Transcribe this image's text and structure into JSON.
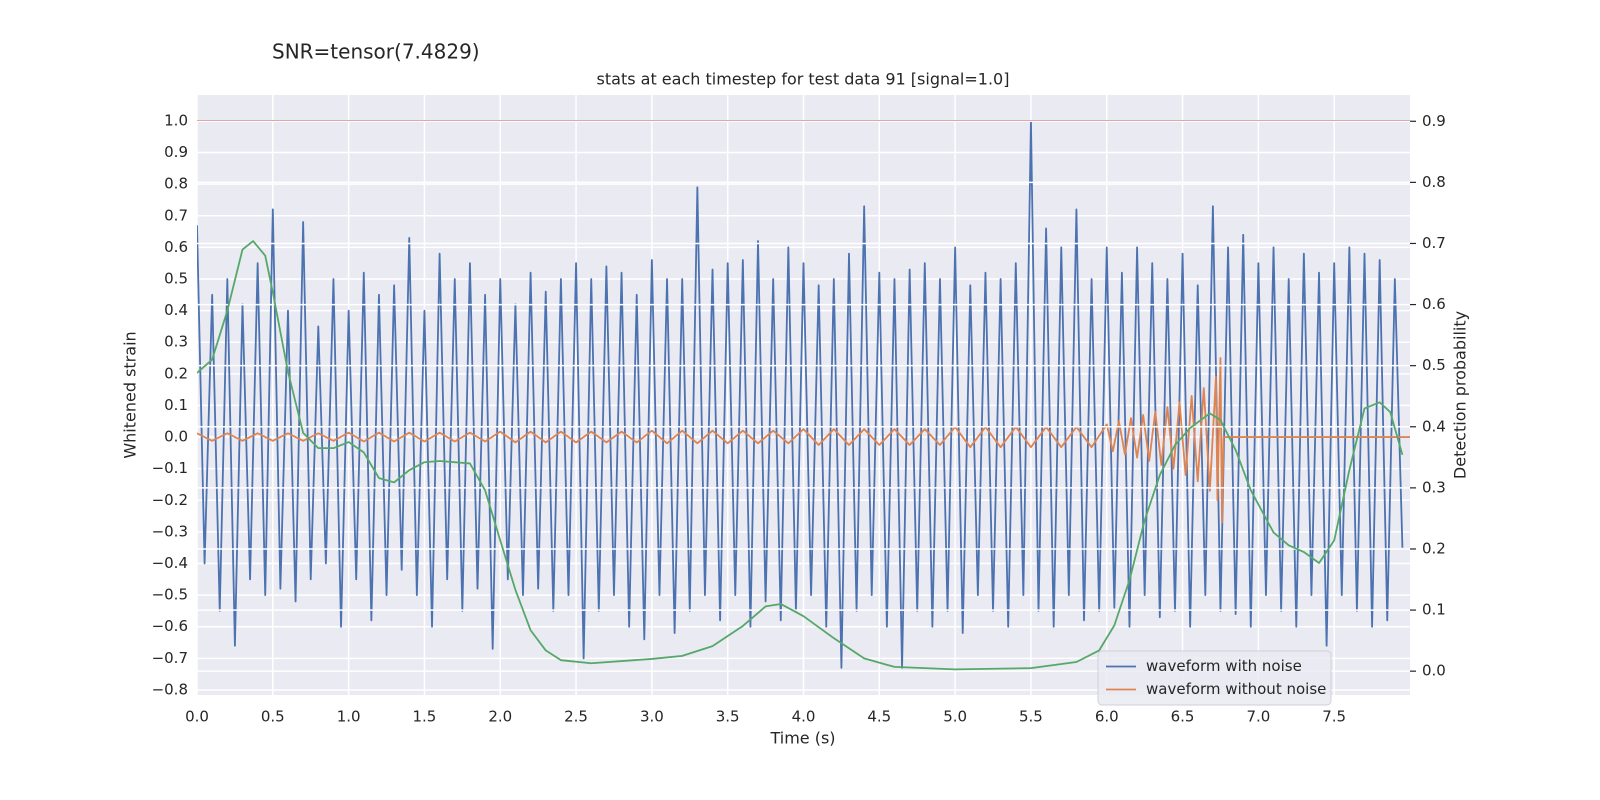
{
  "chart_data": {
    "type": "line",
    "suptitle": "SNR=tensor(7.4829)",
    "title": "stats at each timestep for test data 91 [signal=1.0]",
    "xlabel": "Time (s)",
    "ylabel": "Whitened strain",
    "y2label": "Detection probability",
    "xlim": [
      0,
      8.0
    ],
    "ylim": [
      -0.816,
      1.082
    ],
    "y2lim": [
      -0.039,
      0.943
    ],
    "xticks": [
      {
        "value": 0,
        "label": "0.0"
      },
      0.5,
      {
        "value": 1,
        "label": "1.0"
      },
      1.5,
      {
        "value": 2,
        "label": "2.0"
      },
      2.5,
      {
        "value": 3,
        "label": "3.0"
      },
      3.5,
      {
        "value": 4,
        "label": "4.0"
      },
      4.5,
      {
        "value": 5,
        "label": "5.0"
      },
      5.5,
      {
        "value": 6,
        "label": "6.0"
      },
      6.5,
      {
        "value": 7,
        "label": "7.0"
      },
      7.5
    ],
    "yticks": [
      {
        "value": -0.8,
        "label": "−0.8"
      },
      {
        "value": -0.7,
        "label": "−0.7"
      },
      {
        "value": -0.6,
        "label": "−0.6"
      },
      {
        "value": -0.5,
        "label": "−0.5"
      },
      {
        "value": -0.4,
        "label": "−0.4"
      },
      {
        "value": -0.3,
        "label": "−0.3"
      },
      {
        "value": -0.2,
        "label": "−0.2"
      },
      {
        "value": -0.1,
        "label": "−0.1"
      },
      {
        "value": 0,
        "label": "0.0"
      },
      0.1,
      0.2,
      0.3,
      0.4,
      0.5,
      0.6,
      0.7,
      0.8,
      0.9,
      {
        "value": 1,
        "label": "1.0"
      }
    ],
    "y2ticks": [
      {
        "value": 0,
        "label": "0.0"
      },
      0.1,
      0.2,
      0.3,
      0.4,
      0.5,
      0.6,
      0.7,
      0.8,
      0.9
    ],
    "grid": true,
    "legend": "lower right",
    "hlines": [
      {
        "value": 1.0,
        "color": "#c44e52"
      }
    ],
    "series": [
      {
        "name": "waveform with noise",
        "color": "#4c72b0",
        "x": [
          0,
          0.05,
          0.1,
          0.15,
          0.2,
          0.25,
          0.3,
          0.35,
          0.4,
          0.45,
          0.5,
          0.55,
          0.6,
          0.65,
          0.7,
          0.75,
          0.8,
          0.85,
          0.9,
          0.95,
          1,
          1.05,
          1.1,
          1.15,
          1.2,
          1.25,
          1.3,
          1.35,
          1.4,
          1.45,
          1.5,
          1.55,
          1.6,
          1.65,
          1.7,
          1.75,
          1.8,
          1.85,
          1.9,
          1.95,
          2,
          2.05,
          2.1,
          2.15,
          2.2,
          2.25,
          2.3,
          2.35,
          2.4,
          2.45,
          2.5,
          2.55,
          2.6,
          2.65,
          2.7,
          2.75,
          2.8,
          2.85,
          2.9,
          2.95,
          3,
          3.05,
          3.1,
          3.15,
          3.2,
          3.25,
          3.3,
          3.35,
          3.4,
          3.45,
          3.5,
          3.55,
          3.6,
          3.65,
          3.7,
          3.75,
          3.8,
          3.85,
          3.9,
          3.95,
          4,
          4.05,
          4.1,
          4.15,
          4.2,
          4.25,
          4.3,
          4.35,
          4.4,
          4.45,
          4.5,
          4.55,
          4.6,
          4.65,
          4.7,
          4.75,
          4.8,
          4.85,
          4.9,
          4.95,
          5,
          5.05,
          5.1,
          5.15,
          5.2,
          5.25,
          5.3,
          5.35,
          5.4,
          5.45,
          5.5,
          5.55,
          5.6,
          5.65,
          5.7,
          5.75,
          5.8,
          5.85,
          5.9,
          5.95,
          6,
          6.05,
          6.1,
          6.15,
          6.2,
          6.25,
          6.3,
          6.35,
          6.4,
          6.45,
          6.5,
          6.55,
          6.6,
          6.65,
          6.7,
          6.75,
          6.8,
          6.85,
          6.9,
          6.95,
          7,
          7.05,
          7.1,
          7.15,
          7.2,
          7.25,
          7.3,
          7.35,
          7.4,
          7.45,
          7.5,
          7.55,
          7.6,
          7.65,
          7.7,
          7.75,
          7.8,
          7.85,
          7.9,
          7.95
        ],
        "values": [
          0.67,
          -0.4,
          0.45,
          -0.55,
          0.5,
          -0.66,
          0.42,
          -0.45,
          0.55,
          -0.5,
          0.72,
          -0.48,
          0.4,
          -0.52,
          0.68,
          -0.45,
          0.35,
          -0.4,
          0.5,
          -0.6,
          0.4,
          -0.45,
          0.52,
          -0.58,
          0.45,
          -0.5,
          0.48,
          -0.42,
          0.63,
          -0.5,
          0.4,
          -0.6,
          0.58,
          -0.45,
          0.5,
          -0.55,
          0.55,
          -0.48,
          0.45,
          -0.67,
          0.5,
          -0.45,
          0.42,
          -0.5,
          0.52,
          -0.48,
          0.46,
          -0.55,
          0.5,
          -0.5,
          0.55,
          -0.7,
          0.5,
          -0.55,
          0.54,
          -0.5,
          0.52,
          -0.6,
          0.45,
          -0.64,
          0.56,
          -0.5,
          0.5,
          -0.62,
          0.5,
          -0.55,
          0.79,
          -0.5,
          0.53,
          -0.58,
          0.55,
          -0.5,
          0.56,
          -0.6,
          0.62,
          -0.52,
          0.5,
          -0.58,
          0.6,
          -0.55,
          0.55,
          -0.5,
          0.48,
          -0.6,
          0.5,
          -0.73,
          0.58,
          -0.55,
          0.73,
          -0.5,
          0.52,
          -0.6,
          0.5,
          -0.73,
          0.53,
          -0.55,
          0.55,
          -0.6,
          0.5,
          -0.55,
          0.6,
          -0.62,
          0.48,
          -0.5,
          0.52,
          -0.55,
          0.5,
          -0.6,
          0.55,
          -0.5,
          1.0,
          -0.55,
          0.66,
          -0.6,
          0.6,
          -0.5,
          0.72,
          -0.58,
          0.5,
          -0.55,
          0.6,
          -0.54,
          0.52,
          -0.6,
          0.6,
          -0.5,
          0.55,
          -0.57,
          0.5,
          -0.55,
          0.58,
          -0.6,
          0.48,
          -0.5,
          0.73,
          -0.55,
          0.6,
          -0.56,
          0.64,
          -0.6,
          0.55,
          -0.5,
          0.6,
          -0.55,
          0.5,
          -0.6,
          0.58,
          -0.5,
          0.52,
          -0.66,
          0.55,
          -0.5,
          0.6,
          -0.55,
          0.58,
          -0.6,
          0.56,
          -0.58,
          0.5,
          -0.35
        ]
      },
      {
        "name": "waveform without noise",
        "color": "#dd8452",
        "x": [
          0,
          0.1,
          0.2,
          0.3,
          0.4,
          0.5,
          0.6,
          0.7,
          0.8,
          0.9,
          1,
          1.1,
          1.2,
          1.3,
          1.4,
          1.5,
          1.6,
          1.7,
          1.8,
          1.9,
          2,
          2.1,
          2.2,
          2.3,
          2.4,
          2.5,
          2.6,
          2.7,
          2.8,
          2.9,
          3,
          3.1,
          3.2,
          3.3,
          3.4,
          3.5,
          3.6,
          3.7,
          3.8,
          3.9,
          4,
          4.1,
          4.2,
          4.3,
          4.4,
          4.5,
          4.6,
          4.7,
          4.8,
          4.9,
          5,
          5.1,
          5.2,
          5.3,
          5.4,
          5.5,
          5.6,
          5.7,
          5.8,
          5.9,
          6,
          6.04,
          6.08,
          6.12,
          6.16,
          6.2,
          6.24,
          6.28,
          6.32,
          6.36,
          6.4,
          6.44,
          6.48,
          6.52,
          6.56,
          6.6,
          6.64,
          6.68,
          6.72,
          6.73,
          6.75,
          6.76,
          6.77,
          8.0
        ],
        "values": [
          0.012,
          -0.012,
          0.012,
          -0.012,
          0.012,
          -0.012,
          0.012,
          -0.012,
          0.012,
          -0.012,
          0.014,
          -0.014,
          0.014,
          -0.014,
          0.014,
          -0.014,
          0.014,
          -0.014,
          0.014,
          -0.014,
          0.017,
          -0.017,
          0.017,
          -0.017,
          0.017,
          -0.017,
          0.017,
          -0.017,
          0.017,
          -0.017,
          0.02,
          -0.02,
          0.02,
          -0.02,
          0.02,
          -0.02,
          0.02,
          -0.02,
          0.02,
          -0.02,
          0.025,
          -0.025,
          0.025,
          -0.025,
          0.025,
          -0.025,
          0.025,
          -0.025,
          0.025,
          -0.025,
          0.032,
          -0.032,
          0.032,
          -0.032,
          0.032,
          -0.032,
          0.032,
          -0.032,
          0.032,
          -0.032,
          0.04,
          -0.045,
          0.05,
          -0.055,
          0.06,
          -0.065,
          0.07,
          -0.075,
          0.08,
          -0.088,
          0.095,
          -0.1,
          0.11,
          -0.12,
          0.13,
          -0.14,
          0.155,
          -0.17,
          0.19,
          -0.2,
          0.25,
          -0.27,
          0,
          0
        ]
      },
      {
        "color": "#55a868",
        "axis": "y2",
        "x": [
          0,
          0.1,
          0.2,
          0.3,
          0.37,
          0.45,
          0.5,
          0.6,
          0.65,
          0.7,
          0.8,
          0.9,
          1,
          1.1,
          1.2,
          1.3,
          1.4,
          1.5,
          1.6,
          1.8,
          1.9,
          2,
          2.1,
          2.2,
          2.3,
          2.4,
          2.6,
          3,
          3.2,
          3.4,
          3.6,
          3.75,
          3.85,
          4,
          4.2,
          4.4,
          4.6,
          5,
          5.5,
          5.8,
          5.95,
          6.05,
          6.15,
          6.25,
          6.35,
          6.45,
          6.55,
          6.68,
          6.75,
          6.85,
          6.95,
          7.1,
          7.2,
          7.3,
          7.4,
          7.5,
          7.6,
          7.7,
          7.8,
          7.87,
          7.95
        ],
        "values": [
          0.488,
          0.51,
          0.59,
          0.69,
          0.704,
          0.68,
          0.62,
          0.49,
          0.44,
          0.39,
          0.365,
          0.365,
          0.375,
          0.358,
          0.316,
          0.309,
          0.329,
          0.342,
          0.344,
          0.34,
          0.296,
          0.214,
          0.133,
          0.067,
          0.034,
          0.018,
          0.013,
          0.02,
          0.025,
          0.041,
          0.074,
          0.106,
          0.11,
          0.09,
          0.054,
          0.021,
          0.007,
          0.003,
          0.005,
          0.015,
          0.034,
          0.075,
          0.149,
          0.247,
          0.321,
          0.37,
          0.398,
          0.422,
          0.411,
          0.362,
          0.296,
          0.227,
          0.206,
          0.195,
          0.177,
          0.214,
          0.329,
          0.43,
          0.44,
          0.424,
          0.354
        ]
      }
    ]
  }
}
